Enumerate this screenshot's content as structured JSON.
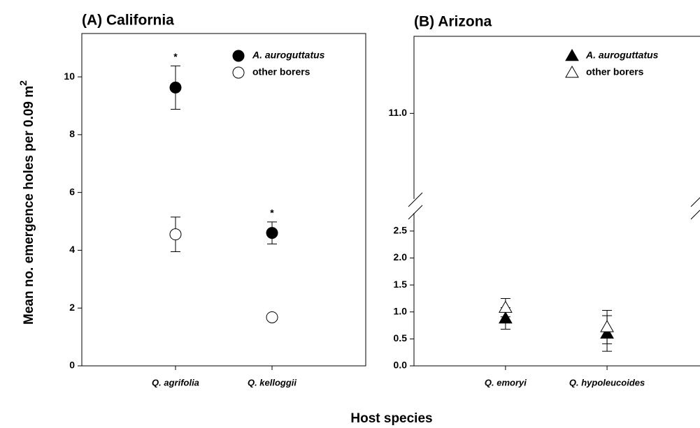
{
  "ylabel": "Mean no. emergence holes per 0.09 m",
  "ylabel_sup": "2",
  "xlabel": "Host species",
  "chart_data": [
    {
      "type": "dot",
      "title": "(A) California",
      "categories": [
        "Q. agrifolia",
        "Q. kelloggii"
      ],
      "series": [
        {
          "name": "A. auroguttatus",
          "marker": "circle",
          "color": "#000000",
          "fill": "#000000",
          "values": [
            9.63,
            4.6
          ],
          "errors": [
            0.75,
            0.38
          ]
        },
        {
          "name": "other borers",
          "marker": "circle",
          "color": "#000000",
          "fill": "#ffffff",
          "values": [
            4.55,
            1.68
          ],
          "errors": [
            0.6,
            0.1
          ]
        }
      ],
      "annotations": [
        {
          "text": "*",
          "series": 0,
          "category": 0
        },
        {
          "text": "*",
          "series": 0,
          "category": 1
        }
      ],
      "ylim": [
        0,
        11.5
      ],
      "yticks": [
        0,
        2,
        4,
        6,
        8,
        10
      ],
      "legend": "upper right"
    },
    {
      "type": "dot",
      "title": "(B) Arizona",
      "categories": [
        "Q. emoryi",
        "Q. hypoleucoides"
      ],
      "series": [
        {
          "name": "A. auroguttatus",
          "marker": "triangle",
          "color": "#000000",
          "fill": "#000000",
          "values": [
            0.88,
            0.6
          ],
          "errors": [
            0.2,
            0.33
          ]
        },
        {
          "name": "other borers",
          "marker": "triangle",
          "color": "#000000",
          "fill": "#ffffff",
          "values": [
            1.08,
            0.72
          ],
          "errors": [
            0.17,
            0.31
          ]
        }
      ],
      "ylim": [
        0,
        2.9
      ],
      "yticks": [
        {
          "value": 0,
          "label": "0.0"
        },
        0.5,
        {
          "value": 1,
          "label": "1.0"
        },
        1.5,
        {
          "value": 2,
          "label": "2.0"
        },
        2.5
      ],
      "upper_ylim": [
        10.5,
        11.45
      ],
      "upper_yticks": [
        {
          "value": 11,
          "label": "11.0"
        }
      ],
      "legend": "upper right"
    }
  ]
}
